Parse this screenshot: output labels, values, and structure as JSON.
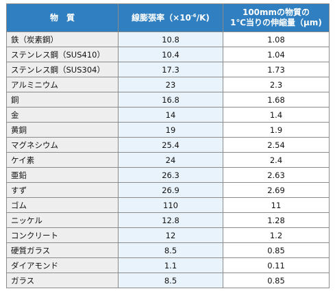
{
  "table": {
    "headers": {
      "material": "物　質",
      "coef_main": "線膨張率（×10",
      "coef_sup": "-6",
      "coef_tail": "/K)",
      "growth_line1": "100mmの物質の",
      "growth_line2": "1℃当りの伸縮量（μm)"
    },
    "rows": [
      {
        "name": "鉄（炭素鋼）",
        "coef": "10.8",
        "growth": "1.08"
      },
      {
        "name": "ステンレス鋼（SUS410）",
        "coef": "10.4",
        "growth": "1.04"
      },
      {
        "name": "ステンレス鋼（SUS304）",
        "coef": "17.3",
        "growth": "1.73"
      },
      {
        "name": "アルミニウム",
        "coef": "23",
        "growth": "2.3"
      },
      {
        "name": "銅",
        "coef": "16.8",
        "growth": "1.68"
      },
      {
        "name": "金",
        "coef": "14",
        "growth": "1.4"
      },
      {
        "name": "黄銅",
        "coef": "19",
        "growth": "1.9"
      },
      {
        "name": "マグネシウム",
        "coef": "25.4",
        "growth": "2.54"
      },
      {
        "name": "ケイ素",
        "coef": "24",
        "growth": "2.4"
      },
      {
        "name": "亜鉛",
        "coef": "26.3",
        "growth": "2.63"
      },
      {
        "name": "すず",
        "coef": "26.9",
        "growth": "2.69"
      },
      {
        "name": "ゴム",
        "coef": "110",
        "growth": "11"
      },
      {
        "name": "ニッケル",
        "coef": "12.8",
        "growth": "1.28"
      },
      {
        "name": "コンクリート",
        "coef": "12",
        "growth": "1.2"
      },
      {
        "name": "硬質ガラス",
        "coef": "8.5",
        "growth": "0.85"
      },
      {
        "name": "ダイアモンド",
        "coef": "1.1",
        "growth": "0.11"
      },
      {
        "name": "ガラス",
        "coef": "8.5",
        "growth": "0.85"
      }
    ]
  }
}
